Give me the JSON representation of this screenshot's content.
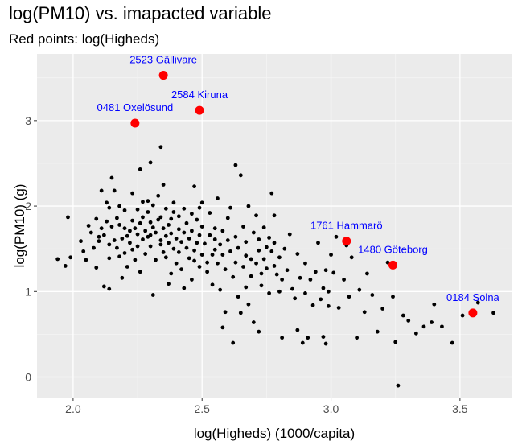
{
  "chart_data": {
    "type": "scatter",
    "title": "log(PM10) vs. imapacted variable",
    "subtitle": "Red points: log(Higheds)",
    "xlabel": "log(Higheds) (1000/capita)",
    "ylabel": "log(PM10) (g)",
    "xlim": [
      1.86,
      3.7
    ],
    "ylim": [
      -0.24,
      3.78
    ],
    "xticks": [
      "2.0",
      "2.5",
      "3.0",
      "3.5"
    ],
    "yticks": [
      "0",
      "1",
      "2",
      "3"
    ],
    "grid": true,
    "background_color": "#ebebeb",
    "point_color": "#000000",
    "highlight_color": "#ff0000",
    "annotation_color": "#0000ff",
    "highlighted": [
      {
        "label": "2523 Gällivare",
        "x": 2.35,
        "y": 3.53
      },
      {
        "label": "2584 Kiruna",
        "x": 2.49,
        "y": 3.12
      },
      {
        "label": "0481 Oxelösund",
        "x": 2.24,
        "y": 2.97
      },
      {
        "label": "1761 Hammarö",
        "x": 3.06,
        "y": 1.59
      },
      {
        "label": "1480 Göteborg",
        "x": 3.24,
        "y": 1.31
      },
      {
        "label": "0184 Solna",
        "x": 3.55,
        "y": 0.75
      }
    ],
    "points": [
      [
        1.94,
        1.38
      ],
      [
        1.97,
        1.3
      ],
      [
        1.98,
        1.87
      ],
      [
        1.99,
        1.4
      ],
      [
        2.03,
        1.59
      ],
      [
        2.04,
        1.47
      ],
      [
        2.05,
        1.37
      ],
      [
        2.06,
        1.77
      ],
      [
        2.07,
        1.69
      ],
      [
        2.08,
        1.51
      ],
      [
        2.09,
        1.28
      ],
      [
        2.09,
        1.85
      ],
      [
        2.1,
        1.64
      ],
      [
        2.1,
        1.59
      ],
      [
        2.11,
        1.74
      ],
      [
        2.11,
        2.18
      ],
      [
        2.12,
        1.66
      ],
      [
        2.12,
        1.06
      ],
      [
        2.13,
        1.82
      ],
      [
        2.13,
        2.04
      ],
      [
        2.14,
        1.98
      ],
      [
        2.14,
        1.39
      ],
      [
        2.14,
        1.03
      ],
      [
        2.14,
        1.55
      ],
      [
        2.15,
        2.33
      ],
      [
        2.15,
        1.76
      ],
      [
        2.16,
        1.6
      ],
      [
        2.16,
        2.18
      ],
      [
        2.17,
        1.51
      ],
      [
        2.17,
        1.86
      ],
      [
        2.18,
        1.41
      ],
      [
        2.18,
        2.0
      ],
      [
        2.18,
        1.78
      ],
      [
        2.19,
        1.16
      ],
      [
        2.19,
        1.62
      ],
      [
        2.2,
        1.74
      ],
      [
        2.2,
        1.95
      ],
      [
        2.2,
        1.45
      ],
      [
        2.21,
        1.65
      ],
      [
        2.21,
        1.29
      ],
      [
        2.22,
        1.71
      ],
      [
        2.22,
        1.57
      ],
      [
        2.23,
        1.83
      ],
      [
        2.23,
        2.15
      ],
      [
        2.23,
        1.49
      ],
      [
        2.24,
        1.74
      ],
      [
        2.24,
        1.37
      ],
      [
        2.25,
        1.67
      ],
      [
        2.25,
        1.96
      ],
      [
        2.25,
        1.53
      ],
      [
        2.26,
        2.43
      ],
      [
        2.26,
        1.8
      ],
      [
        2.26,
        1.23
      ],
      [
        2.27,
        1.61
      ],
      [
        2.27,
        2.05
      ],
      [
        2.27,
        1.87
      ],
      [
        2.28,
        1.71
      ],
      [
        2.28,
        1.44
      ],
      [
        2.29,
        2.06
      ],
      [
        2.29,
        1.64
      ],
      [
        2.29,
        1.93
      ],
      [
        2.3,
        1.81
      ],
      [
        2.3,
        1.66
      ],
      [
        2.3,
        1.53
      ],
      [
        2.3,
        2.51
      ],
      [
        2.31,
        0.96
      ],
      [
        2.31,
        1.75
      ],
      [
        2.31,
        2.01
      ],
      [
        2.32,
        1.37
      ],
      [
        2.32,
        1.69
      ],
      [
        2.33,
        1.84
      ],
      [
        2.33,
        2.12
      ],
      [
        2.34,
        1.55
      ],
      [
        2.34,
        1.87
      ],
      [
        2.34,
        1.6
      ],
      [
        2.34,
        2.69
      ],
      [
        2.35,
        1.46
      ],
      [
        2.35,
        1.74
      ],
      [
        2.35,
        2.25
      ],
      [
        2.36,
        1.65
      ],
      [
        2.36,
        1.97
      ],
      [
        2.36,
        1.4
      ],
      [
        2.37,
        1.78
      ],
      [
        2.37,
        1.57
      ],
      [
        2.37,
        1.09
      ],
      [
        2.38,
        1.85
      ],
      [
        2.38,
        1.21
      ],
      [
        2.38,
        1.68
      ],
      [
        2.39,
        1.5
      ],
      [
        2.39,
        2.04
      ],
      [
        2.39,
        1.93
      ],
      [
        2.4,
        1.62
      ],
      [
        2.4,
        1.33
      ],
      [
        2.41,
        1.73
      ],
      [
        2.41,
        1.88
      ],
      [
        2.41,
        1.46
      ],
      [
        2.42,
        1.58
      ],
      [
        2.42,
        1.26
      ],
      [
        2.43,
        1.69
      ],
      [
        2.43,
        1.04
      ],
      [
        2.43,
        1.97
      ],
      [
        2.44,
        1.51
      ],
      [
        2.44,
        1.8
      ],
      [
        2.45,
        1.39
      ],
      [
        2.45,
        1.62
      ],
      [
        2.46,
        1.14
      ],
      [
        2.46,
        1.91
      ],
      [
        2.46,
        1.71
      ],
      [
        2.47,
        1.48
      ],
      [
        2.47,
        1.36
      ],
      [
        2.47,
        2.23
      ],
      [
        2.48,
        1.57
      ],
      [
        2.48,
        1.84
      ],
      [
        2.49,
        1.29
      ],
      [
        2.49,
        1.66
      ],
      [
        2.49,
        1.98
      ],
      [
        2.5,
        1.43
      ],
      [
        2.5,
        1.76
      ],
      [
        2.5,
        2.04
      ],
      [
        2.51,
        1.56
      ],
      [
        2.52,
        1.34
      ],
      [
        2.52,
        1.23
      ],
      [
        2.53,
        1.66
      ],
      [
        2.53,
        1.92
      ],
      [
        2.54,
        1.43
      ],
      [
        2.54,
        1.08
      ],
      [
        2.55,
        1.74
      ],
      [
        2.55,
        1.49
      ],
      [
        2.55,
        1.61
      ],
      [
        2.56,
        1.33
      ],
      [
        2.56,
        2.09
      ],
      [
        2.57,
        1.55
      ],
      [
        2.57,
        1.02
      ],
      [
        2.58,
        0.58
      ],
      [
        2.58,
        1.71
      ],
      [
        2.58,
        1.43
      ],
      [
        2.59,
        0.76
      ],
      [
        2.59,
        1.26
      ],
      [
        2.6,
        1.6
      ],
      [
        2.6,
        1.86
      ],
      [
        2.61,
        1.47
      ],
      [
        2.61,
        1.98
      ],
      [
        2.62,
        0.4
      ],
      [
        2.62,
        1.17
      ],
      [
        2.63,
        1.64
      ],
      [
        2.63,
        2.48
      ],
      [
        2.63,
        1.34
      ],
      [
        2.64,
        0.94
      ],
      [
        2.64,
        1.51
      ],
      [
        2.65,
        0.75
      ],
      [
        2.65,
        2.36
      ],
      [
        2.66,
        1.29
      ],
      [
        2.66,
        1.76
      ],
      [
        2.67,
        1.05
      ],
      [
        2.67,
        1.58
      ],
      [
        2.67,
        1.42
      ],
      [
        2.68,
        0.85
      ],
      [
        2.68,
        2.0
      ],
      [
        2.69,
        1.38
      ],
      [
        2.69,
        1.18
      ],
      [
        2.7,
        0.64
      ],
      [
        2.7,
        1.69
      ],
      [
        2.71,
        1.33
      ],
      [
        2.71,
        1.89
      ],
      [
        2.72,
        0.53
      ],
      [
        2.72,
        1.48
      ],
      [
        2.72,
        1.61
      ],
      [
        2.73,
        1.21
      ],
      [
        2.73,
        1.07
      ],
      [
        2.74,
        1.38
      ],
      [
        2.74,
        1.75
      ],
      [
        2.75,
        1.52
      ],
      [
        2.75,
        1.27
      ],
      [
        2.76,
        1.63
      ],
      [
        2.76,
        0.98
      ],
      [
        2.77,
        1.47
      ],
      [
        2.77,
        2.15
      ],
      [
        2.78,
        1.3
      ],
      [
        2.78,
        1.57
      ],
      [
        2.78,
        1.89
      ],
      [
        2.79,
        1.2
      ],
      [
        2.8,
        1.0
      ],
      [
        2.8,
        1.4
      ],
      [
        2.81,
        0.46
      ],
      [
        2.81,
        1.14
      ],
      [
        2.82,
        1.5
      ],
      [
        2.83,
        1.25
      ],
      [
        2.84,
        1.67
      ],
      [
        2.85,
        1.03
      ],
      [
        2.86,
        0.92
      ],
      [
        2.87,
        1.44
      ],
      [
        2.87,
        0.55
      ],
      [
        2.88,
        1.16
      ],
      [
        2.89,
        0.4
      ],
      [
        2.9,
        0.98
      ],
      [
        2.9,
        1.33
      ],
      [
        2.91,
        0.46
      ],
      [
        2.92,
        1.14
      ],
      [
        2.93,
        0.84
      ],
      [
        2.94,
        1.23
      ],
      [
        2.95,
        1.57
      ],
      [
        2.96,
        0.91
      ],
      [
        2.97,
        1.04
      ],
      [
        2.97,
        0.47
      ],
      [
        2.98,
        0.39
      ],
      [
        2.98,
        1.25
      ],
      [
        2.99,
        1.0
      ],
      [
        2.99,
        0.83
      ],
      [
        3.0,
        1.43
      ],
      [
        3.01,
        1.22
      ],
      [
        3.02,
        1.64
      ],
      [
        3.03,
        0.81
      ],
      [
        3.05,
        1.14
      ],
      [
        3.06,
        1.54
      ],
      [
        3.07,
        0.94
      ],
      [
        3.08,
        1.4
      ],
      [
        3.1,
        0.46
      ],
      [
        3.11,
        1.02
      ],
      [
        3.13,
        0.76
      ],
      [
        3.14,
        1.21
      ],
      [
        3.16,
        0.96
      ],
      [
        3.18,
        0.53
      ],
      [
        3.2,
        0.8
      ],
      [
        3.22,
        1.34
      ],
      [
        3.24,
        0.94
      ],
      [
        3.25,
        0.41
      ],
      [
        3.26,
        -0.1
      ],
      [
        3.28,
        0.72
      ],
      [
        3.3,
        0.66
      ],
      [
        3.33,
        0.51
      ],
      [
        3.36,
        0.59
      ],
      [
        3.39,
        0.64
      ],
      [
        3.4,
        0.85
      ],
      [
        3.43,
        0.59
      ],
      [
        3.47,
        0.4
      ],
      [
        3.51,
        0.72
      ],
      [
        3.57,
        0.87
      ],
      [
        3.63,
        0.75
      ]
    ]
  }
}
